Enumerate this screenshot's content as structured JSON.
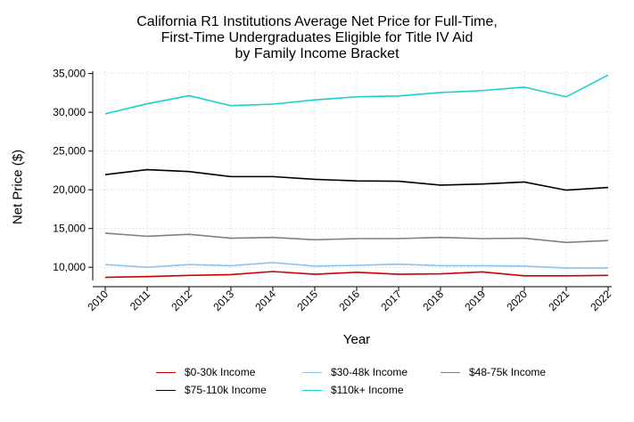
{
  "chart_data": {
    "type": "line",
    "title": "California R1 Institutions Average Net Price for Full-Time,",
    "title_line2": "First-Time Undergraduates Eligible for Title IV Aid",
    "title_line3": "by Family Income Bracket",
    "xlabel": "Year",
    "ylabel": "Net Price ($)",
    "x": [
      2010,
      2011,
      2012,
      2013,
      2014,
      2015,
      2016,
      2017,
      2018,
      2019,
      2020,
      2021,
      2022
    ],
    "x_tick_labels": [
      "2010",
      "2011",
      "2012",
      "2013",
      "2014",
      "2015",
      "2016",
      "2017",
      "2018",
      "2019",
      "2020",
      "2021",
      "2022"
    ],
    "y_ticks": [
      10000,
      15000,
      20000,
      25000,
      30000,
      35000
    ],
    "y_tick_labels": [
      "10,000",
      "15,000",
      "20,000",
      "25,000",
      "30,000",
      "35,000"
    ],
    "ylim": [
      8300,
      35300
    ],
    "grid": true,
    "legend_position": "bottom",
    "series": [
      {
        "name": "$0-30k Income",
        "color": "#cc0000",
        "values": [
          8700,
          8800,
          8950,
          9050,
          9450,
          9100,
          9350,
          9100,
          9150,
          9400,
          8900,
          8900,
          8950
        ]
      },
      {
        "name": "$30-48k Income",
        "color": "#89c4f4",
        "values": [
          10350,
          10000,
          10350,
          10200,
          10600,
          10150,
          10250,
          10400,
          10200,
          10200,
          10150,
          9900,
          9900
        ]
      },
      {
        "name": "$48-75k Income",
        "color": "#808080",
        "values": [
          14400,
          14000,
          14250,
          13750,
          13850,
          13550,
          13700,
          13700,
          13850,
          13700,
          13750,
          13200,
          13450
        ]
      },
      {
        "name": "$75-110k Income",
        "color": "#000000",
        "values": [
          21950,
          22600,
          22350,
          21700,
          21700,
          21350,
          21150,
          21100,
          20600,
          20750,
          21000,
          19950,
          20300
        ]
      },
      {
        "name": "$110k+ Income",
        "color": "#17d0d0",
        "values": [
          29800,
          31100,
          32150,
          30850,
          31050,
          31600,
          32000,
          32100,
          32550,
          32800,
          33250,
          32000,
          34800
        ]
      }
    ]
  }
}
